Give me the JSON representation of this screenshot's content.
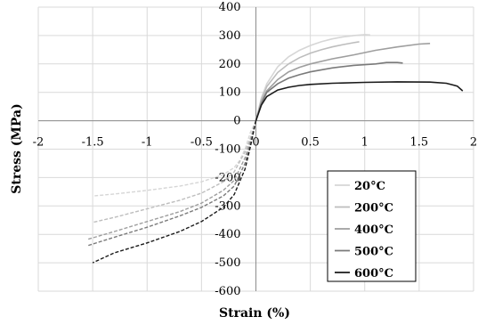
{
  "chart_data": {
    "type": "line",
    "xlabel": "Strain (%)",
    "ylabel": "Stress (MPa)",
    "xlim": [
      -2,
      2
    ],
    "ylim": [
      -600,
      400
    ],
    "x_ticks": [
      "-2",
      "-1.5",
      "-1",
      "-0.5",
      "0",
      "0.5",
      "1",
      "1.5",
      "2"
    ],
    "y_ticks": [
      "400",
      "300",
      "200",
      "100",
      "0",
      "-100",
      "-200",
      "-300",
      "-400",
      "-500",
      "-600"
    ],
    "grid": true,
    "legend_position": "bottom-right",
    "series": [
      {
        "name": "20°C",
        "color": "#d6d6d6",
        "tension": [
          [
            0,
            0
          ],
          [
            0.05,
            80
          ],
          [
            0.1,
            130
          ],
          [
            0.2,
            190
          ],
          [
            0.3,
            225
          ],
          [
            0.4,
            248
          ],
          [
            0.5,
            265
          ],
          [
            0.6,
            278
          ],
          [
            0.7,
            288
          ],
          [
            0.8,
            295
          ],
          [
            0.9,
            300
          ],
          [
            1.0,
            303
          ],
          [
            1.05,
            302
          ]
        ],
        "compression": [
          [
            0,
            0
          ],
          [
            -0.05,
            -40
          ],
          [
            -0.1,
            -100
          ],
          [
            -0.15,
            -140
          ],
          [
            -0.2,
            -165
          ],
          [
            -0.3,
            -190
          ],
          [
            -0.5,
            -215
          ],
          [
            -0.7,
            -230
          ],
          [
            -1.0,
            -245
          ],
          [
            -1.3,
            -258
          ],
          [
            -1.5,
            -265
          ]
        ]
      },
      {
        "name": "200°C",
        "color": "#bdbdbd",
        "tension": [
          [
            0,
            0
          ],
          [
            0.05,
            75
          ],
          [
            0.1,
            120
          ],
          [
            0.2,
            170
          ],
          [
            0.3,
            200
          ],
          [
            0.4,
            222
          ],
          [
            0.5,
            238
          ],
          [
            0.6,
            250
          ],
          [
            0.7,
            260
          ],
          [
            0.8,
            268
          ],
          [
            0.9,
            275
          ],
          [
            0.95,
            278
          ]
        ],
        "compression": [
          [
            0,
            0
          ],
          [
            -0.05,
            -60
          ],
          [
            -0.1,
            -110
          ],
          [
            -0.2,
            -180
          ],
          [
            -0.3,
            -215
          ],
          [
            -0.5,
            -255
          ],
          [
            -0.7,
            -280
          ],
          [
            -1.0,
            -310
          ],
          [
            -1.3,
            -340
          ],
          [
            -1.5,
            -358
          ]
        ]
      },
      {
        "name": "400°C",
        "color": "#9e9e9e",
        "tension": [
          [
            0,
            0
          ],
          [
            0.05,
            65
          ],
          [
            0.1,
            105
          ],
          [
            0.2,
            145
          ],
          [
            0.3,
            172
          ],
          [
            0.4,
            188
          ],
          [
            0.5,
            200
          ],
          [
            0.7,
            218
          ],
          [
            0.9,
            232
          ],
          [
            1.1,
            248
          ],
          [
            1.3,
            260
          ],
          [
            1.5,
            270
          ],
          [
            1.6,
            272
          ]
        ],
        "compression": [
          [
            0,
            0
          ],
          [
            -0.05,
            -70
          ],
          [
            -0.1,
            -130
          ],
          [
            -0.2,
            -210
          ],
          [
            -0.3,
            -245
          ],
          [
            -0.5,
            -290
          ],
          [
            -0.7,
            -320
          ],
          [
            -1.0,
            -355
          ],
          [
            -1.3,
            -390
          ],
          [
            -1.55,
            -418
          ]
        ]
      },
      {
        "name": "500°C",
        "color": "#7a7a7a",
        "tension": [
          [
            0,
            0
          ],
          [
            0.05,
            60
          ],
          [
            0.1,
            100
          ],
          [
            0.2,
            130
          ],
          [
            0.3,
            150
          ],
          [
            0.4,
            162
          ],
          [
            0.5,
            172
          ],
          [
            0.7,
            186
          ],
          [
            0.9,
            195
          ],
          [
            1.1,
            200
          ],
          [
            1.2,
            205
          ],
          [
            1.3,
            205
          ],
          [
            1.35,
            203
          ]
        ],
        "compression": [
          [
            0,
            0
          ],
          [
            -0.05,
            -80
          ],
          [
            -0.1,
            -150
          ],
          [
            -0.2,
            -230
          ],
          [
            -0.3,
            -265
          ],
          [
            -0.5,
            -305
          ],
          [
            -0.7,
            -335
          ],
          [
            -1.0,
            -375
          ],
          [
            -1.3,
            -410
          ],
          [
            -1.55,
            -440
          ]
        ]
      },
      {
        "name": "600°C",
        "color": "#1a1a1a",
        "tension": [
          [
            0,
            0
          ],
          [
            0.05,
            55
          ],
          [
            0.1,
            85
          ],
          [
            0.2,
            108
          ],
          [
            0.3,
            118
          ],
          [
            0.4,
            124
          ],
          [
            0.5,
            128
          ],
          [
            0.7,
            132
          ],
          [
            1.0,
            135
          ],
          [
            1.3,
            137
          ],
          [
            1.6,
            136
          ],
          [
            1.75,
            132
          ],
          [
            1.85,
            122
          ],
          [
            1.9,
            105
          ]
        ],
        "compression": [
          [
            0,
            0
          ],
          [
            -0.05,
            -90
          ],
          [
            -0.1,
            -170
          ],
          [
            -0.2,
            -260
          ],
          [
            -0.3,
            -305
          ],
          [
            -0.5,
            -355
          ],
          [
            -0.7,
            -390
          ],
          [
            -1.0,
            -430
          ],
          [
            -1.3,
            -465
          ],
          [
            -1.5,
            -500
          ]
        ]
      }
    ]
  }
}
